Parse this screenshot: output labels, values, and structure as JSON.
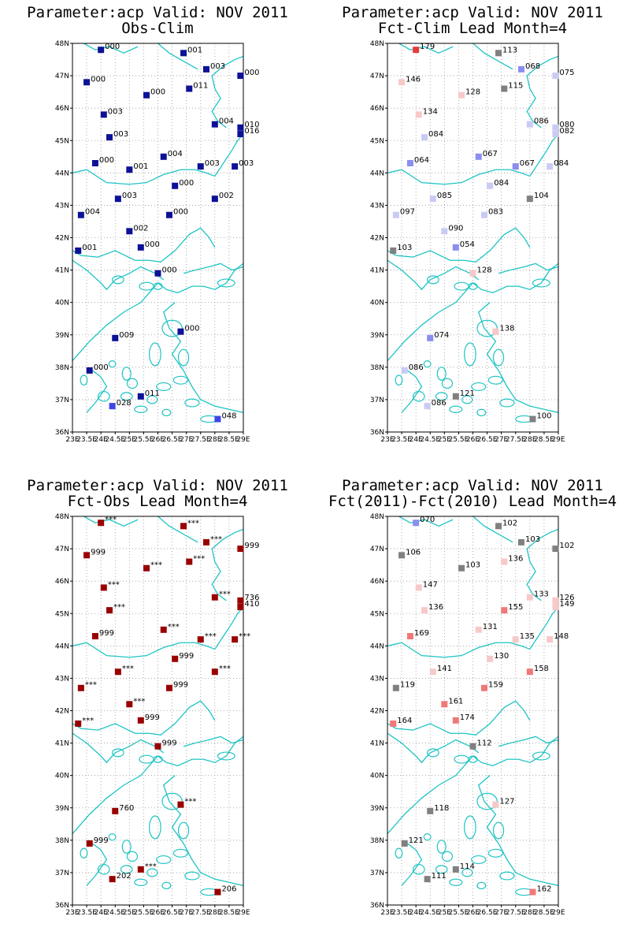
{
  "colors": {
    "coast": "#1fc4c4",
    "grid": "#999999",
    "deep_blue": "#0c1196",
    "mid_blue": "#3d45e6",
    "light_blue": "#8a8ef0",
    "pale_blue": "#c9cbf5",
    "grey": "#808080",
    "pale_pink": "#f8c8c8",
    "salmon": "#f07878",
    "red": "#e83a3a",
    "dark_red": "#990000"
  },
  "axes": {
    "lat_labels": [
      "48N",
      "47N",
      "46N",
      "45N",
      "44N",
      "43N",
      "42N",
      "41N",
      "40N",
      "39N",
      "38N",
      "37N",
      "36N"
    ],
    "lon_labels": [
      "23E",
      "23.5E",
      "24E",
      "24.5E",
      "25E",
      "25.5E",
      "26E",
      "26.5E",
      "27E",
      "27.5E",
      "28E",
      "28.5E",
      "29E"
    ]
  },
  "chart_data": [
    {
      "type": "scatter",
      "title": "Parameter:acp Valid: NOV 2011",
      "subtitle": "Obs-Clim",
      "xlim": [
        23,
        29
      ],
      "ylim": [
        36,
        48
      ],
      "grid": true,
      "points": [
        {
          "lon": 24.0,
          "lat": 47.8,
          "label": "000",
          "color": "deep_blue"
        },
        {
          "lon": 26.9,
          "lat": 47.7,
          "label": "001",
          "color": "deep_blue"
        },
        {
          "lon": 27.7,
          "lat": 47.2,
          "label": "003",
          "color": "deep_blue"
        },
        {
          "lon": 28.9,
          "lat": 47.0,
          "label": "000",
          "color": "deep_blue"
        },
        {
          "lon": 23.5,
          "lat": 46.8,
          "label": "000",
          "color": "deep_blue"
        },
        {
          "lon": 25.6,
          "lat": 46.4,
          "label": "000",
          "color": "deep_blue"
        },
        {
          "lon": 27.1,
          "lat": 46.6,
          "label": "011",
          "color": "deep_blue"
        },
        {
          "lon": 24.1,
          "lat": 45.8,
          "label": "003",
          "color": "deep_blue"
        },
        {
          "lon": 28.0,
          "lat": 45.5,
          "label": "004",
          "color": "deep_blue"
        },
        {
          "lon": 28.9,
          "lat": 45.4,
          "label": "010",
          "color": "deep_blue"
        },
        {
          "lon": 28.9,
          "lat": 45.2,
          "label": "016",
          "color": "deep_blue"
        },
        {
          "lon": 24.3,
          "lat": 45.1,
          "label": "003",
          "color": "deep_blue"
        },
        {
          "lon": 26.2,
          "lat": 44.5,
          "label": "004",
          "color": "deep_blue"
        },
        {
          "lon": 23.8,
          "lat": 44.3,
          "label": "000",
          "color": "deep_blue"
        },
        {
          "lon": 25.0,
          "lat": 44.1,
          "label": "001",
          "color": "deep_blue"
        },
        {
          "lon": 27.5,
          "lat": 44.2,
          "label": "003",
          "color": "deep_blue"
        },
        {
          "lon": 28.7,
          "lat": 44.2,
          "label": "003",
          "color": "deep_blue"
        },
        {
          "lon": 26.6,
          "lat": 43.6,
          "label": "000",
          "color": "deep_blue"
        },
        {
          "lon": 24.6,
          "lat": 43.2,
          "label": "003",
          "color": "deep_blue"
        },
        {
          "lon": 28.0,
          "lat": 43.2,
          "label": "002",
          "color": "deep_blue"
        },
        {
          "lon": 23.3,
          "lat": 42.7,
          "label": "004",
          "color": "deep_blue"
        },
        {
          "lon": 26.4,
          "lat": 42.7,
          "label": "000",
          "color": "deep_blue"
        },
        {
          "lon": 25.0,
          "lat": 42.2,
          "label": "002",
          "color": "deep_blue"
        },
        {
          "lon": 25.4,
          "lat": 41.7,
          "label": "000",
          "color": "deep_blue"
        },
        {
          "lon": 23.2,
          "lat": 41.6,
          "label": "001",
          "color": "deep_blue"
        },
        {
          "lon": 26.0,
          "lat": 40.9,
          "label": "000",
          "color": "deep_blue"
        },
        {
          "lon": 24.5,
          "lat": 38.9,
          "label": "009",
          "color": "deep_blue"
        },
        {
          "lon": 26.8,
          "lat": 39.1,
          "label": "000",
          "color": "deep_blue"
        },
        {
          "lon": 23.6,
          "lat": 37.9,
          "label": "000",
          "color": "deep_blue"
        },
        {
          "lon": 25.4,
          "lat": 37.1,
          "label": "011",
          "color": "deep_blue"
        },
        {
          "lon": 24.4,
          "lat": 36.8,
          "label": "028",
          "color": "mid_blue"
        },
        {
          "lon": 28.1,
          "lat": 36.4,
          "label": "048",
          "color": "mid_blue"
        }
      ]
    },
    {
      "type": "scatter",
      "title": "Parameter:acp Valid: NOV 2011",
      "subtitle": "Fct-Clim Lead Month=4",
      "xlim": [
        23,
        29
      ],
      "ylim": [
        36,
        48
      ],
      "grid": true,
      "points": [
        {
          "lon": 24.0,
          "lat": 47.8,
          "label": "179",
          "color": "red"
        },
        {
          "lon": 26.9,
          "lat": 47.7,
          "label": "113",
          "color": "grey"
        },
        {
          "lon": 27.7,
          "lat": 47.2,
          "label": "068",
          "color": "light_blue"
        },
        {
          "lon": 28.9,
          "lat": 47.0,
          "label": "075",
          "color": "pale_blue"
        },
        {
          "lon": 23.5,
          "lat": 46.8,
          "label": "146",
          "color": "pale_pink"
        },
        {
          "lon": 25.6,
          "lat": 46.4,
          "label": "128",
          "color": "pale_pink"
        },
        {
          "lon": 27.1,
          "lat": 46.6,
          "label": "115",
          "color": "grey"
        },
        {
          "lon": 24.1,
          "lat": 45.8,
          "label": "134",
          "color": "pale_pink"
        },
        {
          "lon": 28.0,
          "lat": 45.5,
          "label": "086",
          "color": "pale_blue"
        },
        {
          "lon": 28.9,
          "lat": 45.4,
          "label": "080",
          "color": "pale_blue"
        },
        {
          "lon": 28.9,
          "lat": 45.2,
          "label": "082",
          "color": "pale_blue"
        },
        {
          "lon": 24.3,
          "lat": 45.1,
          "label": "084",
          "color": "pale_blue"
        },
        {
          "lon": 26.2,
          "lat": 44.5,
          "label": "067",
          "color": "light_blue"
        },
        {
          "lon": 23.8,
          "lat": 44.3,
          "label": "064",
          "color": "light_blue"
        },
        {
          "lon": 27.5,
          "lat": 44.2,
          "label": "067",
          "color": "light_blue"
        },
        {
          "lon": 28.7,
          "lat": 44.2,
          "label": "084",
          "color": "pale_blue"
        },
        {
          "lon": 26.6,
          "lat": 43.6,
          "label": "084",
          "color": "pale_blue"
        },
        {
          "lon": 24.6,
          "lat": 43.2,
          "label": "085",
          "color": "pale_blue"
        },
        {
          "lon": 28.0,
          "lat": 43.2,
          "label": "104",
          "color": "grey"
        },
        {
          "lon": 23.3,
          "lat": 42.7,
          "label": "097",
          "color": "pale_blue"
        },
        {
          "lon": 26.4,
          "lat": 42.7,
          "label": "083",
          "color": "pale_blue"
        },
        {
          "lon": 25.0,
          "lat": 42.2,
          "label": "090",
          "color": "pale_blue"
        },
        {
          "lon": 25.4,
          "lat": 41.7,
          "label": "054",
          "color": "light_blue"
        },
        {
          "lon": 23.2,
          "lat": 41.6,
          "label": "103",
          "color": "grey"
        },
        {
          "lon": 26.0,
          "lat": 40.9,
          "label": "128",
          "color": "pale_pink"
        },
        {
          "lon": 24.5,
          "lat": 38.9,
          "label": "074",
          "color": "light_blue"
        },
        {
          "lon": 26.8,
          "lat": 39.1,
          "label": "138",
          "color": "pale_pink"
        },
        {
          "lon": 23.6,
          "lat": 37.9,
          "label": "086",
          "color": "pale_blue"
        },
        {
          "lon": 25.4,
          "lat": 37.1,
          "label": "121",
          "color": "grey"
        },
        {
          "lon": 24.4,
          "lat": 36.8,
          "label": "086",
          "color": "pale_blue"
        },
        {
          "lon": 28.1,
          "lat": 36.4,
          "label": "100",
          "color": "grey"
        }
      ]
    },
    {
      "type": "scatter",
      "title": "Parameter:acp Valid: NOV 2011",
      "subtitle": "Fct-Obs Lead Month=4",
      "xlim": [
        23,
        29
      ],
      "ylim": [
        36,
        48
      ],
      "grid": true,
      "points": [
        {
          "lon": 24.0,
          "lat": 47.8,
          "label": "***",
          "color": "dark_red"
        },
        {
          "lon": 26.9,
          "lat": 47.7,
          "label": "***",
          "color": "dark_red"
        },
        {
          "lon": 27.7,
          "lat": 47.2,
          "label": "***",
          "color": "dark_red"
        },
        {
          "lon": 28.9,
          "lat": 47.0,
          "label": "999",
          "color": "dark_red"
        },
        {
          "lon": 23.5,
          "lat": 46.8,
          "label": "999",
          "color": "dark_red"
        },
        {
          "lon": 25.6,
          "lat": 46.4,
          "label": "***",
          "color": "dark_red"
        },
        {
          "lon": 27.1,
          "lat": 46.6,
          "label": "***",
          "color": "dark_red"
        },
        {
          "lon": 24.1,
          "lat": 45.8,
          "label": "***",
          "color": "dark_red"
        },
        {
          "lon": 28.0,
          "lat": 45.5,
          "label": "***",
          "color": "dark_red"
        },
        {
          "lon": 28.9,
          "lat": 45.4,
          "label": "736",
          "color": "dark_red"
        },
        {
          "lon": 28.9,
          "lat": 45.2,
          "label": "410",
          "color": "dark_red"
        },
        {
          "lon": 24.3,
          "lat": 45.1,
          "label": "***",
          "color": "dark_red"
        },
        {
          "lon": 26.2,
          "lat": 44.5,
          "label": "***",
          "color": "dark_red"
        },
        {
          "lon": 23.8,
          "lat": 44.3,
          "label": "999",
          "color": "dark_red"
        },
        {
          "lon": 27.5,
          "lat": 44.2,
          "label": "***",
          "color": "dark_red"
        },
        {
          "lon": 28.7,
          "lat": 44.2,
          "label": "***",
          "color": "dark_red"
        },
        {
          "lon": 26.6,
          "lat": 43.6,
          "label": "999",
          "color": "dark_red"
        },
        {
          "lon": 24.6,
          "lat": 43.2,
          "label": "***",
          "color": "dark_red"
        },
        {
          "lon": 28.0,
          "lat": 43.2,
          "label": "***",
          "color": "dark_red"
        },
        {
          "lon": 23.3,
          "lat": 42.7,
          "label": "***",
          "color": "dark_red"
        },
        {
          "lon": 26.4,
          "lat": 42.7,
          "label": "999",
          "color": "dark_red"
        },
        {
          "lon": 25.0,
          "lat": 42.2,
          "label": "***",
          "color": "dark_red"
        },
        {
          "lon": 25.4,
          "lat": 41.7,
          "label": "999",
          "color": "dark_red"
        },
        {
          "lon": 23.2,
          "lat": 41.6,
          "label": "***",
          "color": "dark_red"
        },
        {
          "lon": 26.0,
          "lat": 40.9,
          "label": "999",
          "color": "dark_red"
        },
        {
          "lon": 24.5,
          "lat": 38.9,
          "label": "760",
          "color": "dark_red"
        },
        {
          "lon": 26.8,
          "lat": 39.1,
          "label": "***",
          "color": "dark_red"
        },
        {
          "lon": 23.6,
          "lat": 37.9,
          "label": "999",
          "color": "dark_red"
        },
        {
          "lon": 25.4,
          "lat": 37.1,
          "label": "***",
          "color": "dark_red"
        },
        {
          "lon": 24.4,
          "lat": 36.8,
          "label": "202",
          "color": "dark_red"
        },
        {
          "lon": 28.1,
          "lat": 36.4,
          "label": "206",
          "color": "dark_red"
        }
      ]
    },
    {
      "type": "scatter",
      "title": "Parameter:acp Valid: NOV 2011",
      "subtitle": "Fct(2011)-Fct(2010) Lead Month=4",
      "xlim": [
        23,
        29
      ],
      "ylim": [
        36,
        48
      ],
      "grid": true,
      "points": [
        {
          "lon": 24.0,
          "lat": 47.8,
          "label": "070",
          "color": "light_blue"
        },
        {
          "lon": 26.9,
          "lat": 47.7,
          "label": "102",
          "color": "grey"
        },
        {
          "lon": 27.7,
          "lat": 47.2,
          "label": "103",
          "color": "grey"
        },
        {
          "lon": 28.9,
          "lat": 47.0,
          "label": "102",
          "color": "grey"
        },
        {
          "lon": 23.5,
          "lat": 46.8,
          "label": "106",
          "color": "grey"
        },
        {
          "lon": 25.6,
          "lat": 46.4,
          "label": "103",
          "color": "grey"
        },
        {
          "lon": 27.1,
          "lat": 46.6,
          "label": "136",
          "color": "pale_pink"
        },
        {
          "lon": 24.1,
          "lat": 45.8,
          "label": "147",
          "color": "pale_pink"
        },
        {
          "lon": 28.0,
          "lat": 45.5,
          "label": "133",
          "color": "pale_pink"
        },
        {
          "lon": 28.9,
          "lat": 45.4,
          "label": "126",
          "color": "pale_pink"
        },
        {
          "lon": 28.9,
          "lat": 45.2,
          "label": "149",
          "color": "pale_pink"
        },
        {
          "lon": 24.3,
          "lat": 45.1,
          "label": "136",
          "color": "pale_pink"
        },
        {
          "lon": 26.2,
          "lat": 44.5,
          "label": "131",
          "color": "pale_pink"
        },
        {
          "lon": 27.1,
          "lat": 45.1,
          "label": "155",
          "color": "salmon"
        },
        {
          "lon": 23.8,
          "lat": 44.3,
          "label": "169",
          "color": "salmon"
        },
        {
          "lon": 27.5,
          "lat": 44.2,
          "label": "135",
          "color": "pale_pink"
        },
        {
          "lon": 28.7,
          "lat": 44.2,
          "label": "148",
          "color": "pale_pink"
        },
        {
          "lon": 26.6,
          "lat": 43.6,
          "label": "130",
          "color": "pale_pink"
        },
        {
          "lon": 24.6,
          "lat": 43.2,
          "label": "141",
          "color": "pale_pink"
        },
        {
          "lon": 28.0,
          "lat": 43.2,
          "label": "158",
          "color": "salmon"
        },
        {
          "lon": 23.3,
          "lat": 42.7,
          "label": "119",
          "color": "grey"
        },
        {
          "lon": 26.4,
          "lat": 42.7,
          "label": "159",
          "color": "salmon"
        },
        {
          "lon": 25.0,
          "lat": 42.2,
          "label": "161",
          "color": "salmon"
        },
        {
          "lon": 25.4,
          "lat": 41.7,
          "label": "174",
          "color": "salmon"
        },
        {
          "lon": 23.2,
          "lat": 41.6,
          "label": "164",
          "color": "salmon"
        },
        {
          "lon": 26.0,
          "lat": 40.9,
          "label": "112",
          "color": "grey"
        },
        {
          "lon": 24.5,
          "lat": 38.9,
          "label": "118",
          "color": "grey"
        },
        {
          "lon": 26.8,
          "lat": 39.1,
          "label": "127",
          "color": "pale_pink"
        },
        {
          "lon": 23.6,
          "lat": 37.9,
          "label": "121",
          "color": "grey"
        },
        {
          "lon": 25.4,
          "lat": 37.1,
          "label": "114",
          "color": "grey"
        },
        {
          "lon": 24.4,
          "lat": 36.8,
          "label": "111",
          "color": "grey"
        },
        {
          "lon": 28.1,
          "lat": 36.4,
          "label": "162",
          "color": "salmon"
        }
      ]
    }
  ]
}
